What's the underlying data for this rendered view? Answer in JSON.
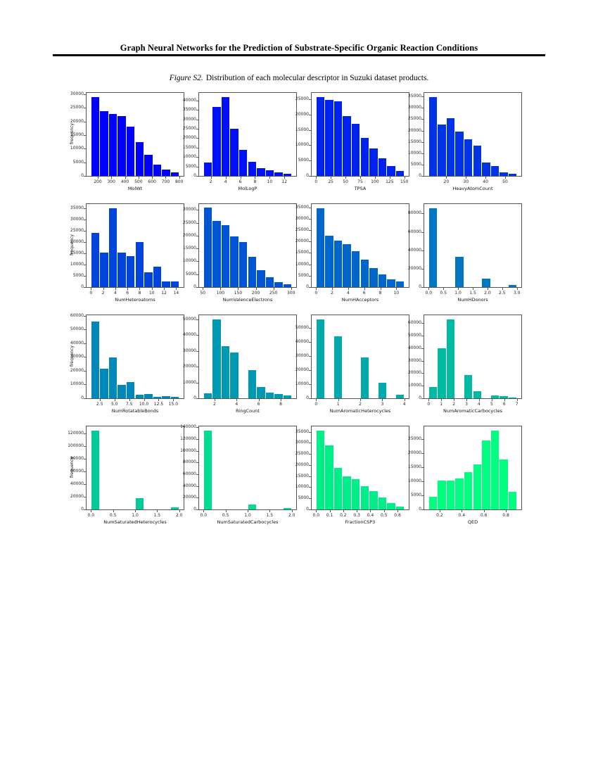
{
  "page": {
    "header_title": "Graph Neural Networks for the Prediction of Substrate-Specific Organic Reaction Conditions",
    "caption_label": "Figure S2.",
    "caption_text": "Distribution of each molecular descriptor in Suzuki dataset products."
  },
  "chart_data": [
    {
      "type": "bar",
      "xlabel": "MolWt",
      "ylabel": "frequency",
      "color": "#0000ff",
      "ymax": 30500,
      "bins": {
        "start": 150,
        "width": 65
      },
      "values": [
        29000,
        23700,
        22700,
        22000,
        18000,
        12300,
        7800,
        4200,
        2400,
        1200
      ],
      "xticks": [
        "200",
        "300",
        "400",
        "500",
        "600",
        "700",
        "800"
      ],
      "yticks": [
        "0",
        "5000",
        "10000",
        "15000",
        "20000",
        "25000",
        "30000"
      ]
    },
    {
      "type": "bar",
      "xlabel": "MolLogP",
      "ylabel": "",
      "color": "#0011f7",
      "ymax": 44100,
      "bins": {
        "start": 1,
        "width": 1.2
      },
      "values": [
        7000,
        36500,
        42000,
        25000,
        13800,
        7500,
        4300,
        3000,
        1800,
        1000
      ],
      "xticks": [
        "2",
        "4",
        "6",
        "8",
        "10",
        "12"
      ],
      "yticks": [
        "0",
        "5000",
        "10000",
        "15000",
        "20000",
        "25000",
        "30000",
        "35000",
        "40000"
      ]
    },
    {
      "type": "bar",
      "xlabel": "TPSA",
      "ylabel": "",
      "color": "#0022ee",
      "ymax": 27100,
      "bins": {
        "start": 0,
        "width": 15
      },
      "values": [
        25800,
        24700,
        24400,
        19600,
        17000,
        12400,
        9000,
        5800,
        3300,
        1700
      ],
      "xticks": [
        "0",
        "25",
        "50",
        "75",
        "100",
        "125",
        "150"
      ],
      "yticks": [
        "0",
        "5000",
        "10000",
        "15000",
        "20000",
        "25000"
      ]
    },
    {
      "type": "bar",
      "xlabel": "HeavyAtomCount",
      "ylabel": "",
      "color": "#0033e6",
      "ymax": 36600,
      "bins": {
        "start": 11,
        "width": 4.5
      },
      "values": [
        34800,
        22700,
        25300,
        19600,
        16000,
        13400,
        5900,
        4300,
        1700,
        1000
      ],
      "xticks": [
        "20",
        "30",
        "40",
        "50"
      ],
      "yticks": [
        "0",
        "5000",
        "10000",
        "15000",
        "20000",
        "25000",
        "30000",
        "35000"
      ]
    },
    {
      "type": "bar",
      "xlabel": "NumHeteroatoms",
      "ylabel": "frequency",
      "color": "#0044dd",
      "ymax": 36800,
      "bins": {
        "start": 0,
        "width": 1.45
      },
      "values": [
        24000,
        15200,
        35000,
        15400,
        13600,
        19900,
        6500,
        9000,
        2500,
        2400
      ],
      "xticks": [
        "0",
        "2",
        "4",
        "6",
        "8",
        "10",
        "12",
        "14"
      ],
      "yticks": [
        "0",
        "5000",
        "10000",
        "15000",
        "20000",
        "25000",
        "30000",
        "35000"
      ]
    },
    {
      "type": "bar",
      "xlabel": "NumValenceElectrons",
      "ylabel": "",
      "color": "#0055d5",
      "ymax": 32300,
      "bins": {
        "start": 52,
        "width": 25
      },
      "values": [
        30800,
        25800,
        24000,
        19800,
        17400,
        11800,
        6500,
        3800,
        1900,
        1100
      ],
      "xticks": [
        "50",
        "100",
        "150",
        "200",
        "250",
        "300"
      ],
      "yticks": [
        "0",
        "5000",
        "10000",
        "15000",
        "20000",
        "25000",
        "30000"
      ]
    },
    {
      "type": "bar",
      "xlabel": "NumHAcceptors",
      "ylabel": "",
      "color": "#0066cc",
      "ymax": 36400,
      "bins": {
        "start": 0,
        "width": 1.1
      },
      "values": [
        34700,
        22500,
        20300,
        18800,
        15800,
        12000,
        8300,
        5600,
        3300,
        2400
      ],
      "xticks": [
        "0",
        "2",
        "4",
        "6",
        "8",
        "10"
      ],
      "yticks": [
        "0",
        "5000",
        "10000",
        "15000",
        "20000",
        "25000",
        "30000",
        "35000"
      ]
    },
    {
      "type": "bar",
      "xlabel": "NumHDonors",
      "ylabel": "",
      "color": "#0077c4",
      "ymax": 90300,
      "bins": {
        "start": 0,
        "width": 0.3
      },
      "values": [
        86000,
        0,
        0,
        33000,
        0,
        0,
        9500,
        0,
        0,
        2000
      ],
      "xticks": [
        "0.0",
        "0.5",
        "1.0",
        "1.5",
        "2.0",
        "2.5",
        "3.0"
      ],
      "yticks": [
        "0",
        "20000",
        "40000",
        "60000",
        "80000"
      ]
    },
    {
      "type": "bar",
      "xlabel": "NumRotatableBonds",
      "ylabel": "frequency",
      "color": "#0088bb",
      "ymax": 60500,
      "bins": {
        "start": 1,
        "width": 1.5
      },
      "values": [
        56000,
        21500,
        29500,
        9700,
        11800,
        2400,
        3300,
        900,
        1500,
        800
      ],
      "xticks": [
        "2.5",
        "5.0",
        "7.5",
        "10.0",
        "12.5",
        "15.0"
      ],
      "yticks": [
        "0",
        "10000",
        "20000",
        "30000",
        "40000",
        "50000",
        "60000"
      ]
    },
    {
      "type": "bar",
      "xlabel": "RingCount",
      "ylabel": "",
      "color": "#0099b3",
      "ymax": 52500,
      "bins": {
        "start": 1,
        "width": 0.8
      },
      "values": [
        3000,
        50000,
        33000,
        29000,
        0,
        17800,
        7000,
        3500,
        2500,
        1900
      ],
      "xticks": [
        "2",
        "4",
        "6",
        "8"
      ],
      "yticks": [
        "0",
        "10000",
        "20000",
        "30000",
        "40000",
        "50000"
      ]
    },
    {
      "type": "bar",
      "xlabel": "NumAromaticHeterocycles",
      "ylabel": "",
      "color": "#00aaaa",
      "ymax": 58800,
      "bins": {
        "start": 0,
        "width": 0.4
      },
      "values": [
        56000,
        0,
        44000,
        0,
        0,
        29000,
        0,
        11000,
        0,
        2500
      ],
      "xticks": [
        "0",
        "1",
        "2",
        "3",
        "4"
      ],
      "yticks": [
        "0",
        "10000",
        "20000",
        "30000",
        "40000",
        "50000"
      ]
    },
    {
      "type": "bar",
      "xlabel": "NumAromaticCarbocycles",
      "ylabel": "",
      "color": "#00bba2",
      "ymax": 66200,
      "bins": {
        "start": 0,
        "width": 0.7
      },
      "values": [
        9000,
        40000,
        63000,
        0,
        18500,
        5500,
        0,
        2500,
        1500,
        600
      ],
      "xticks": [
        "0",
        "1",
        "2",
        "3",
        "4",
        "5",
        "6",
        "7"
      ],
      "yticks": [
        "0",
        "10000",
        "20000",
        "30000",
        "40000",
        "50000",
        "60000"
      ]
    },
    {
      "type": "bar",
      "xlabel": "NumSaturatedHeterocycles",
      "ylabel": "frequency",
      "color": "#00cc99",
      "ymax": 131300,
      "bins": {
        "start": 0,
        "width": 0.2
      },
      "values": [
        125000,
        0,
        0,
        0,
        0,
        17500,
        0,
        0,
        0,
        3000
      ],
      "xticks": [
        "0.0",
        "0.5",
        "1.0",
        "1.5",
        "2.0"
      ],
      "yticks": [
        "0",
        "20000",
        "40000",
        "60000",
        "80000",
        "100000",
        "120000"
      ]
    },
    {
      "type": "bar",
      "xlabel": "NumSaturatedCarbocycles",
      "ylabel": "",
      "color": "#00dd91",
      "ymax": 141800,
      "bins": {
        "start": 0,
        "width": 0.2
      },
      "values": [
        135000,
        0,
        0,
        0,
        0,
        8000,
        0,
        0,
        0,
        2000
      ],
      "xticks": [
        "0.0",
        "0.5",
        "1.0",
        "1.5",
        "2.0"
      ],
      "yticks": [
        "0",
        "20000",
        "40000",
        "60000",
        "80000",
        "100000",
        "120000",
        "140000"
      ]
    },
    {
      "type": "bar",
      "xlabel": "FractionCSP3",
      "ylabel": "",
      "color": "#00ee88",
      "ymax": 37400,
      "bins": {
        "start": 0,
        "width": 0.065
      },
      "values": [
        35600,
        29000,
        18800,
        14800,
        13700,
        10600,
        8100,
        5400,
        2700,
        1400
      ],
      "xticks": [
        "0.0",
        "0.1",
        "0.2",
        "0.3",
        "0.4",
        "0.5",
        "0.6"
      ],
      "yticks": [
        "0",
        "5000",
        "10000",
        "15000",
        "20000",
        "25000",
        "30000",
        "35000"
      ]
    },
    {
      "type": "bar",
      "xlabel": "QED",
      "ylabel": "",
      "color": "#00ff80",
      "ymax": 29600,
      "bins": {
        "start": 0.1,
        "width": 0.08
      },
      "values": [
        4500,
        10400,
        10300,
        11000,
        13300,
        16100,
        24600,
        28200,
        17700,
        6300
      ],
      "xticks": [
        "0.2",
        "0.4",
        "0.6",
        "0.8"
      ],
      "yticks": [
        "0",
        "5000",
        "10000",
        "15000",
        "20000",
        "25000"
      ]
    }
  ]
}
